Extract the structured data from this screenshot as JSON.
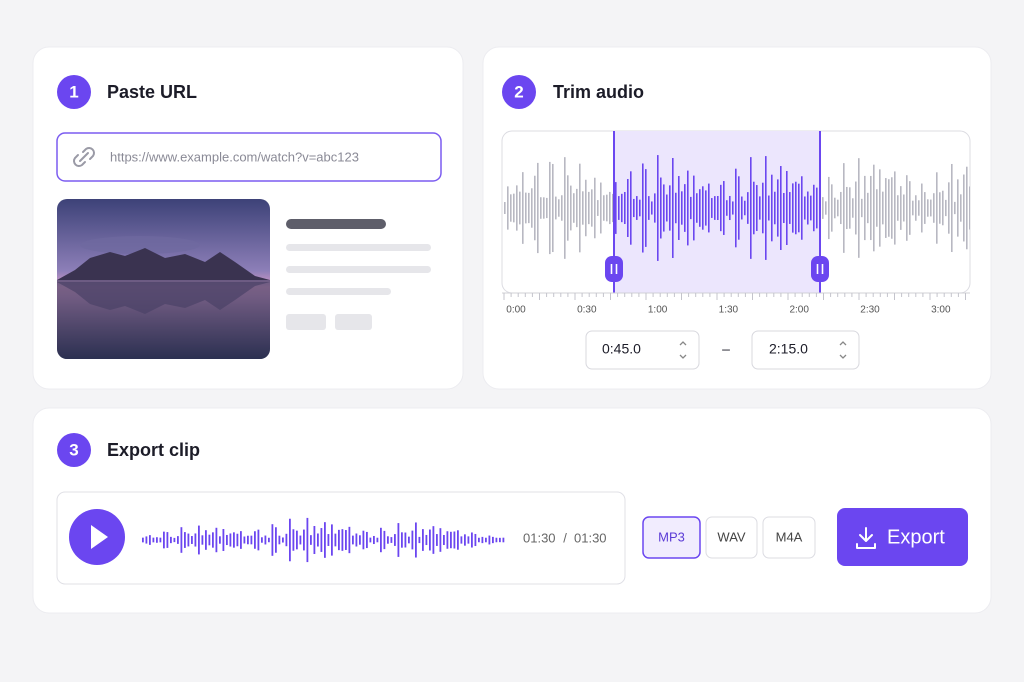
{
  "steps": [
    {
      "number": "1",
      "title": "Paste URL"
    },
    {
      "number": "2",
      "title": "Trim audio"
    },
    {
      "number": "3",
      "title": "Export clip"
    }
  ],
  "url_input": {
    "placeholder": "https://www.example.com/watch?v=abc123"
  },
  "trim": {
    "timeline_labels": [
      "0:00",
      "0:30",
      "1:00",
      "1:30",
      "2:00",
      "2:30",
      "3:00"
    ],
    "start": "0:45.0",
    "separator": "–",
    "end": "2:15.0"
  },
  "player": {
    "current": "01:30",
    "separator": "/",
    "duration": "01:30"
  },
  "formats": [
    "MP3",
    "WAV",
    "M4A"
  ],
  "export_button": "Export"
}
